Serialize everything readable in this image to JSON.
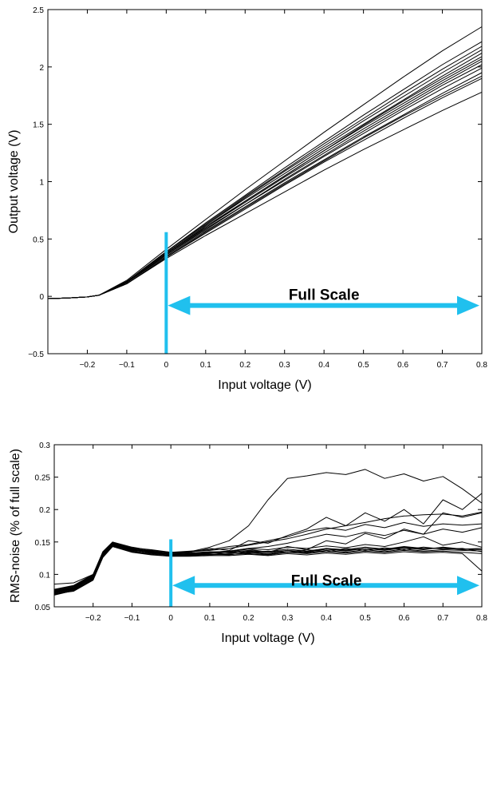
{
  "accent_color": "#20c0ee",
  "chart_data": [
    {
      "type": "line",
      "title": "",
      "xlabel": "Input voltage (V)",
      "ylabel": "Output voltage (V)",
      "xlim": [
        -0.3,
        0.8
      ],
      "ylim": [
        -0.5,
        2.5
      ],
      "xticks": [
        -0.2,
        -0.1,
        0,
        0.1,
        0.2,
        0.3,
        0.4,
        0.5,
        0.6,
        0.7,
        0.8
      ],
      "xtick_labels": [
        "−0.2",
        "−0.1",
        "0",
        "0.1",
        "0.2",
        "0.3",
        "0.4",
        "0.5",
        "0.6",
        "0.7",
        "0.8"
      ],
      "yticks": [
        -0.5,
        0,
        0.5,
        1,
        1.5,
        2,
        2.5
      ],
      "ytick_labels": [
        "−0.5",
        "0",
        "0.5",
        "1",
        "1.5",
        "2",
        "2.5"
      ],
      "grid": false,
      "line_color": "#000000",
      "annotation": {
        "text": "Full Scale",
        "marker_x": 0,
        "marker_y_range": [
          -0.5,
          0.56
        ],
        "arrow_x_range": [
          0,
          0.8
        ],
        "arrow_y": -0.08,
        "text_y": 0.02
      },
      "x": [
        -0.3,
        -0.25,
        -0.2,
        -0.17,
        -0.1,
        0,
        0.1,
        0.2,
        0.3,
        0.4,
        0.5,
        0.6,
        0.7,
        0.8
      ],
      "series": [
        {
          "values": [
            -0.02,
            -0.015,
            -0.005,
            0.01,
            0.11,
            0.34,
            0.55,
            0.76,
            0.97,
            1.17,
            1.36,
            1.55,
            1.73,
            1.9
          ]
        },
        {
          "values": [
            -0.02,
            -0.015,
            -0.005,
            0.01,
            0.12,
            0.36,
            0.59,
            0.8,
            1.01,
            1.22,
            1.42,
            1.62,
            1.81,
            1.99
          ]
        },
        {
          "values": [
            -0.02,
            -0.015,
            -0.005,
            0.01,
            0.12,
            0.37,
            0.6,
            0.82,
            1.04,
            1.25,
            1.46,
            1.66,
            1.86,
            2.05
          ]
        },
        {
          "values": [
            -0.02,
            -0.015,
            -0.005,
            0.01,
            0.13,
            0.38,
            0.62,
            0.85,
            1.07,
            1.29,
            1.5,
            1.71,
            1.92,
            2.12
          ]
        },
        {
          "values": [
            -0.02,
            -0.015,
            -0.005,
            0.01,
            0.13,
            0.39,
            0.64,
            0.88,
            1.12,
            1.35,
            1.58,
            1.8,
            2.02,
            2.22
          ]
        },
        {
          "values": [
            -0.02,
            -0.015,
            -0.005,
            0.01,
            0.14,
            0.41,
            0.67,
            0.93,
            1.18,
            1.43,
            1.67,
            1.91,
            2.14,
            2.35
          ]
        },
        {
          "values": [
            -0.02,
            -0.015,
            -0.005,
            0.01,
            0.11,
            0.33,
            0.53,
            0.72,
            0.91,
            1.1,
            1.28,
            1.45,
            1.62,
            1.78
          ]
        },
        {
          "values": [
            -0.02,
            -0.015,
            -0.005,
            0.01,
            0.12,
            0.35,
            0.57,
            0.78,
            0.99,
            1.19,
            1.39,
            1.58,
            1.77,
            1.95
          ]
        },
        {
          "values": [
            -0.02,
            -0.015,
            -0.005,
            0.01,
            0.12,
            0.37,
            0.61,
            0.83,
            1.05,
            1.27,
            1.48,
            1.68,
            1.88,
            2.07
          ]
        },
        {
          "values": [
            -0.02,
            -0.015,
            -0.005,
            0.01,
            0.13,
            0.39,
            0.63,
            0.87,
            1.1,
            1.33,
            1.55,
            1.77,
            1.98,
            2.18
          ]
        },
        {
          "values": [
            -0.02,
            -0.015,
            -0.005,
            0.01,
            0.11,
            0.34,
            0.56,
            0.77,
            0.98,
            1.18,
            1.38,
            1.57,
            1.75,
            1.92
          ]
        },
        {
          "values": [
            -0.02,
            -0.015,
            -0.005,
            0.01,
            0.12,
            0.36,
            0.58,
            0.8,
            1.02,
            1.23,
            1.44,
            1.64,
            1.84,
            2.02
          ]
        },
        {
          "values": [
            -0.02,
            -0.015,
            -0.005,
            0.01,
            0.12,
            0.37,
            0.6,
            0.83,
            1.05,
            1.27,
            1.49,
            1.7,
            1.9,
            2.09
          ]
        },
        {
          "values": [
            -0.02,
            -0.015,
            -0.005,
            0.01,
            0.13,
            0.38,
            0.62,
            0.86,
            1.09,
            1.31,
            1.53,
            1.74,
            1.95,
            2.15
          ]
        }
      ]
    },
    {
      "type": "line",
      "title": "",
      "xlabel": "Input voltage (V)",
      "ylabel": "RMS-noise (% of full scale)",
      "xlim": [
        -0.3,
        0.8
      ],
      "ylim": [
        0.05,
        0.3
      ],
      "xticks": [
        -0.2,
        -0.1,
        0,
        0.1,
        0.2,
        0.3,
        0.4,
        0.5,
        0.6,
        0.7,
        0.8
      ],
      "xtick_labels": [
        "−0.2",
        "−0.1",
        "0",
        "0.1",
        "0.2",
        "0.3",
        "0.4",
        "0.5",
        "0.6",
        "0.7",
        "0.8"
      ],
      "yticks": [
        0.05,
        0.1,
        0.15,
        0.2,
        0.25,
        0.3
      ],
      "ytick_labels": [
        "0.05",
        "0.1",
        "0.15",
        "0.2",
        "0.25",
        "0.3"
      ],
      "grid": false,
      "line_color": "#000000",
      "annotation": {
        "text": "Full Scale",
        "marker_x": 0,
        "marker_y_range": [
          0.05,
          0.154
        ],
        "arrow_x_range": [
          0,
          0.8
        ],
        "arrow_y": 0.083,
        "text_y": 0.091
      },
      "x": [
        -0.3,
        -0.25,
        -0.2,
        -0.175,
        -0.15,
        -0.1,
        -0.05,
        0,
        0.05,
        0.1,
        0.15,
        0.2,
        0.25,
        0.3,
        0.35,
        0.4,
        0.45,
        0.5,
        0.55,
        0.6,
        0.65,
        0.7,
        0.75,
        0.8
      ],
      "series": [
        {
          "values": [
            0.072,
            0.078,
            0.095,
            0.13,
            0.148,
            0.14,
            0.136,
            0.132,
            0.135,
            0.142,
            0.152,
            0.175,
            0.215,
            0.248,
            0.252,
            0.257,
            0.254,
            0.262,
            0.248,
            0.255,
            0.244,
            0.251,
            0.232,
            0.21
          ]
        },
        {
          "values": [
            0.068,
            0.075,
            0.092,
            0.128,
            0.146,
            0.138,
            0.133,
            0.131,
            0.134,
            0.14,
            0.137,
            0.152,
            0.148,
            0.16,
            0.17,
            0.188,
            0.175,
            0.195,
            0.182,
            0.2,
            0.178,
            0.215,
            0.2,
            0.225
          ]
        },
        {
          "values": [
            0.075,
            0.081,
            0.098,
            0.133,
            0.149,
            0.141,
            0.138,
            0.134,
            0.136,
            0.138,
            0.143,
            0.146,
            0.152,
            0.158,
            0.167,
            0.172,
            0.168,
            0.177,
            0.172,
            0.18,
            0.174,
            0.178,
            0.176,
            0.178
          ]
        },
        {
          "values": [
            0.073,
            0.079,
            0.096,
            0.131,
            0.147,
            0.139,
            0.135,
            0.133,
            0.13,
            0.132,
            0.135,
            0.139,
            0.134,
            0.143,
            0.138,
            0.152,
            0.147,
            0.163,
            0.155,
            0.17,
            0.162,
            0.195,
            0.188,
            0.195
          ]
        },
        {
          "values": [
            0.07,
            0.076,
            0.094,
            0.129,
            0.145,
            0.137,
            0.134,
            0.131,
            0.132,
            0.134,
            0.136,
            0.14,
            0.143,
            0.148,
            0.155,
            0.162,
            0.158,
            0.165,
            0.16,
            0.168,
            0.162,
            0.17,
            0.165,
            0.172
          ]
        },
        {
          "values": [
            0.074,
            0.08,
            0.097,
            0.131,
            0.146,
            0.138,
            0.133,
            0.13,
            0.131,
            0.13,
            0.133,
            0.135,
            0.132,
            0.137,
            0.134,
            0.139,
            0.136,
            0.14,
            0.137,
            0.141,
            0.138,
            0.142,
            0.139,
            0.14
          ]
        },
        {
          "values": [
            0.071,
            0.077,
            0.093,
            0.128,
            0.144,
            0.136,
            0.132,
            0.129,
            0.13,
            0.131,
            0.13,
            0.134,
            0.131,
            0.135,
            0.133,
            0.137,
            0.134,
            0.138,
            0.135,
            0.139,
            0.136,
            0.138,
            0.137,
            0.136
          ]
        },
        {
          "values": [
            0.076,
            0.082,
            0.099,
            0.134,
            0.148,
            0.14,
            0.136,
            0.133,
            0.133,
            0.135,
            0.134,
            0.137,
            0.135,
            0.139,
            0.136,
            0.14,
            0.138,
            0.142,
            0.139,
            0.143,
            0.14,
            0.141,
            0.139,
            0.138
          ]
        },
        {
          "values": [
            0.069,
            0.075,
            0.092,
            0.127,
            0.143,
            0.135,
            0.131,
            0.128,
            0.129,
            0.13,
            0.131,
            0.132,
            0.13,
            0.134,
            0.132,
            0.135,
            0.133,
            0.136,
            0.134,
            0.137,
            0.135,
            0.136,
            0.134,
            0.132
          ]
        },
        {
          "values": [
            0.072,
            0.078,
            0.095,
            0.13,
            0.145,
            0.137,
            0.134,
            0.131,
            0.132,
            0.133,
            0.132,
            0.136,
            0.134,
            0.137,
            0.135,
            0.139,
            0.137,
            0.14,
            0.138,
            0.142,
            0.139,
            0.141,
            0.138,
            0.14
          ]
        },
        {
          "values": [
            0.085,
            0.087,
            0.1,
            0.132,
            0.147,
            0.139,
            0.135,
            0.132,
            0.131,
            0.133,
            0.135,
            0.133,
            0.136,
            0.134,
            0.138,
            0.135,
            0.14,
            0.137,
            0.141,
            0.138,
            0.142,
            0.139,
            0.14,
            0.135
          ]
        },
        {
          "values": [
            0.07,
            0.074,
            0.091,
            0.126,
            0.143,
            0.134,
            0.13,
            0.128,
            0.128,
            0.129,
            0.129,
            0.131,
            0.129,
            0.132,
            0.13,
            0.133,
            0.131,
            0.134,
            0.132,
            0.135,
            0.133,
            0.134,
            0.132,
            0.105
          ]
        },
        {
          "values": [
            0.073,
            0.079,
            0.096,
            0.13,
            0.146,
            0.138,
            0.134,
            0.13,
            0.131,
            0.134,
            0.136,
            0.14,
            0.138,
            0.142,
            0.14,
            0.144,
            0.141,
            0.146,
            0.143,
            0.15,
            0.158,
            0.145,
            0.15,
            0.142
          ]
        },
        {
          "values": [
            0.077,
            0.083,
            0.1,
            0.135,
            0.15,
            0.142,
            0.137,
            0.134,
            0.135,
            0.137,
            0.14,
            0.145,
            0.15,
            0.155,
            0.162,
            0.17,
            0.175,
            0.18,
            0.186,
            0.19,
            0.192,
            0.193,
            0.19,
            0.196
          ]
        }
      ]
    }
  ]
}
